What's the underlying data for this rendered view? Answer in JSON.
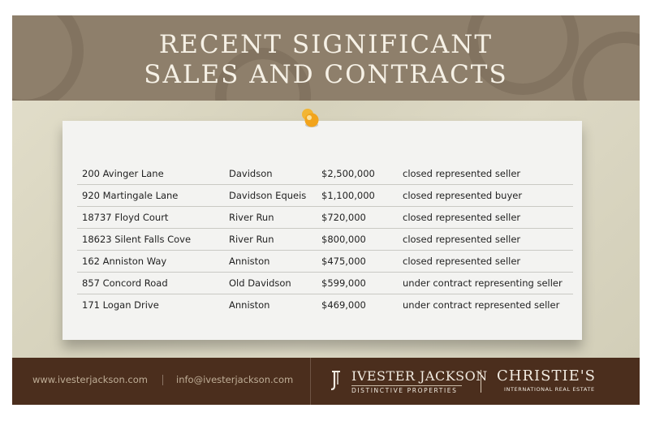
{
  "header": {
    "title_line1": "RECENT SIGNIFICANT",
    "title_line2": "SALES AND CONTRACTS"
  },
  "sales": [
    {
      "address": "200 Avinger Lane",
      "area": "Davidson",
      "price": "$2,500,000",
      "status": "closed represented seller"
    },
    {
      "address": "920 Martingale Lane",
      "area": "Davidson Equeis",
      "price": "$1,100,000",
      "status": "closed represented buyer"
    },
    {
      "address": "18737 Floyd Court",
      "area": "River Run",
      "price": "$720,000",
      "status": "closed represented seller"
    },
    {
      "address": "18623 Silent Falls Cove",
      "area": "River Run",
      "price": "$800,000",
      "status": "closed represented seller"
    },
    {
      "address": "162 Anniston Way",
      "area": "Anniston",
      "price": "$475,000",
      "status": "closed represented seller"
    },
    {
      "address": "857 Concord Road",
      "area": "Old Davidson",
      "price": "$599,000",
      "status": "under contract representing seller"
    },
    {
      "address": "171 Logan Drive",
      "area": "Anniston",
      "price": "$469,000",
      "status": "under contract represented seller"
    }
  ],
  "footer": {
    "website": "www.ivesterjackson.com",
    "email": "info@ivesterjackson.com",
    "logo_ivester": "IVESTER JACKSON",
    "logo_ivester_sub": "DISTINCTIVE PROPERTIES",
    "logo_christies": "CHRISTIE'S",
    "logo_christies_sub": "INTERNATIONAL REAL ESTATE"
  },
  "colors": {
    "header": "#8e7f6b",
    "footer": "#4b2e1d",
    "paper": "#f3f3f1",
    "pin": "#f2a41c"
  },
  "icons": {
    "pin": "push-pin-icon",
    "ivester_mark": "ivester-jackson-monogram-icon"
  }
}
